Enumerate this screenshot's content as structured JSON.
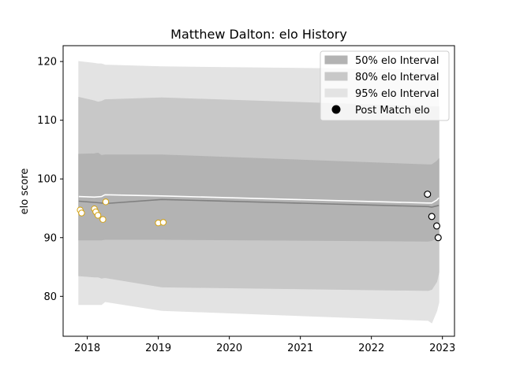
{
  "chart_data": {
    "type": "line",
    "title": "Matthew Dalton: elo History",
    "xlabel": "",
    "ylabel": "elo score",
    "xlim": [
      2017.66,
      2023.17
    ],
    "ylim": [
      73.2,
      122.7
    ],
    "x_ticks": [
      2018,
      2019,
      2020,
      2021,
      2022,
      2023
    ],
    "y_ticks": [
      80,
      90,
      100,
      110,
      120
    ],
    "grid": false,
    "legend_position": "top-right",
    "legend": [
      {
        "label": "50% elo Interval",
        "kind": "band",
        "color": "#b3b3b3"
      },
      {
        "label": "80% elo Interval",
        "kind": "band",
        "color": "#c8c8c8"
      },
      {
        "label": "95% elo Interval",
        "kind": "band",
        "color": "#e3e3e3"
      },
      {
        "label": "Post Match elo",
        "kind": "marker",
        "color": "#000000"
      }
    ],
    "bands": {
      "x": [
        2017.88,
        2018.1,
        2018.15,
        2018.2,
        2018.25,
        2019.05,
        2022.8,
        2022.85,
        2022.92,
        2022.95
      ],
      "band95": {
        "color": "#e3e3e3",
        "upper": [
          120.0,
          119.7,
          119.6,
          119.6,
          119.4,
          119.1,
          118.6,
          118.6,
          118.6,
          118.6
        ],
        "lower": [
          78.6,
          78.6,
          78.6,
          78.6,
          79.1,
          77.6,
          75.9,
          75.5,
          77.5,
          79.0
        ]
      },
      "band80": {
        "color": "#c8c8c8",
        "upper": [
          113.9,
          113.3,
          113.1,
          113.2,
          113.5,
          113.8,
          112.3,
          112.3,
          112.3,
          112.3
        ],
        "lower": [
          83.5,
          83.3,
          83.3,
          83.1,
          83.2,
          81.6,
          81.0,
          81.2,
          82.5,
          84.1
        ]
      },
      "band50": {
        "color": "#b3b3b3",
        "upper": [
          104.2,
          104.3,
          104.4,
          104.0,
          104.1,
          104.1,
          102.4,
          102.4,
          103.0,
          103.4
        ],
        "lower": [
          89.6,
          89.6,
          89.6,
          89.6,
          89.7,
          89.7,
          89.4,
          89.5,
          89.9,
          90.0
        ]
      }
    },
    "series": [
      {
        "role": "mean",
        "color": "#808080",
        "x": [
          2017.88,
          2018.1,
          2018.2,
          2018.25,
          2019.05,
          2022.8,
          2022.85,
          2022.95
        ],
        "y": [
          96.2,
          96.0,
          95.9,
          95.8,
          96.5,
          95.3,
          95.2,
          95.5
        ]
      },
      {
        "role": "current",
        "color": "#ffffff",
        "x": [
          2017.88,
          2018.1,
          2018.2,
          2018.25,
          2019.05,
          2022.8,
          2022.85,
          2022.92,
          2022.95
        ],
        "y": [
          97.0,
          96.9,
          97.0,
          97.3,
          97.1,
          95.9,
          95.9,
          96.4,
          96.8
        ]
      }
    ],
    "points_past": {
      "color": "#d4a20f",
      "x": [
        2017.9,
        2017.92,
        2018.1,
        2018.12,
        2018.15,
        2018.22,
        2018.26,
        2019.0,
        2019.07
      ],
      "y": [
        94.7,
        94.2,
        94.9,
        94.4,
        93.8,
        93.1,
        96.1,
        92.5,
        92.6
      ]
    },
    "points_post_match": {
      "color": "#000000",
      "x": [
        2022.79,
        2022.85,
        2022.92,
        2022.94
      ],
      "y": [
        97.4,
        93.6,
        92.0,
        90.0
      ]
    }
  }
}
